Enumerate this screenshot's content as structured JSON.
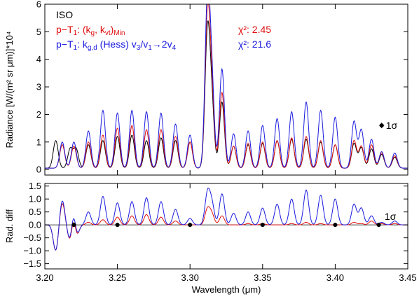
{
  "chart_data": [
    {
      "type": "line",
      "panel": "top",
      "ylabel": "Radiance [W/(m² sr μm)]*10⁴",
      "xlabel": "",
      "xlim": [
        3.2,
        3.45
      ],
      "ylim": [
        -0.2,
        6.0
      ],
      "yticks": [
        "0",
        "1",
        "2",
        "3",
        "4",
        "5",
        "6"
      ],
      "grid": false,
      "legend_position": "top-left",
      "sigma_label": "1σ",
      "sigma_point": {
        "x": 3.432,
        "y": 1.6,
        "err": 0.1
      },
      "colors": {
        "ISO": "#000000",
        "MinModel": "#e01010",
        "HessModel": "#1a1ae0"
      },
      "legend": [
        {
          "series": "ISO",
          "parts": [
            {
              "text": "ISO"
            }
          ]
        },
        {
          "series": "MinModel",
          "parts": [
            {
              "text": "p−T"
            },
            {
              "text": "1",
              "sub": true
            },
            {
              "text": ": (k"
            },
            {
              "text": "g",
              "sub": true
            },
            {
              "text": ", k"
            },
            {
              "text": "vt",
              "sub": true
            },
            {
              "text": ")"
            },
            {
              "text": "Min",
              "sub": true
            }
          ]
        },
        {
          "series": "HessModel",
          "parts": [
            {
              "text": "p−T"
            },
            {
              "text": "1",
              "sub": true
            },
            {
              "text": ": k"
            },
            {
              "text": "g,d",
              "sub": true
            },
            {
              "text": " (Hess) v"
            },
            {
              "text": "3",
              "sub": true
            },
            {
              "text": "/v"
            },
            {
              "text": "1",
              "sub": true
            },
            {
              "text": "→2v"
            },
            {
              "text": "4",
              "sub": true
            }
          ]
        }
      ],
      "chi2": [
        {
          "series": "MinModel",
          "label": "χ²: 2.45"
        },
        {
          "series": "HessModel",
          "label": "χ²: 21.6"
        }
      ],
      "series": [
        {
          "name": "ISO",
          "baseline": 0.05,
          "peaks": [
            [
              3.2075,
              1.0
            ],
            [
              3.2175,
              0.7
            ],
            [
              3.2215,
              0.7
            ],
            [
              3.23,
              0.85
            ],
            [
              3.24,
              1.0
            ],
            [
              3.25,
              1.15
            ],
            [
              3.26,
              1.2
            ],
            [
              3.27,
              1.0
            ],
            [
              3.28,
              1.1
            ],
            [
              3.29,
              1.0
            ],
            [
              3.3,
              0.95
            ],
            [
              3.312,
              4.8
            ],
            [
              3.315,
              2.2
            ],
            [
              3.322,
              2.4
            ],
            [
              3.33,
              0.8
            ],
            [
              3.34,
              0.85
            ],
            [
              3.35,
              0.9
            ],
            [
              3.36,
              1.0
            ],
            [
              3.37,
              1.05
            ],
            [
              3.38,
              1.05
            ],
            [
              3.39,
              0.95
            ],
            [
              3.4,
              0.85
            ],
            [
              3.413,
              0.9
            ],
            [
              3.418,
              0.75
            ],
            [
              3.425,
              0.7
            ],
            [
              3.432,
              0.5
            ],
            [
              3.441,
              0.4
            ]
          ]
        },
        {
          "name": "MinModel",
          "baseline": 0.05,
          "peaks": [
            [
              3.212,
              0.85
            ],
            [
              3.22,
              0.8
            ],
            [
              3.23,
              0.95
            ],
            [
              3.24,
              1.2
            ],
            [
              3.25,
              1.45
            ],
            [
              3.26,
              1.55
            ],
            [
              3.27,
              1.4
            ],
            [
              3.28,
              1.4
            ],
            [
              3.29,
              1.15
            ],
            [
              3.3,
              0.95
            ],
            [
              3.312,
              5.4
            ],
            [
              3.315,
              2.6
            ],
            [
              3.322,
              2.75
            ],
            [
              3.33,
              0.8
            ],
            [
              3.34,
              0.9
            ],
            [
              3.35,
              0.95
            ],
            [
              3.36,
              1.0
            ],
            [
              3.37,
              1.1
            ],
            [
              3.38,
              1.15
            ],
            [
              3.39,
              1.0
            ],
            [
              3.4,
              0.85
            ],
            [
              3.413,
              1.0
            ],
            [
              3.418,
              0.8
            ],
            [
              3.425,
              0.85
            ],
            [
              3.432,
              0.55
            ],
            [
              3.441,
              0.45
            ]
          ]
        },
        {
          "name": "HessModel",
          "baseline": 0.05,
          "peaks": [
            [
              3.212,
              0.95
            ],
            [
              3.22,
              0.95
            ],
            [
              3.23,
              1.35
            ],
            [
              3.24,
              2.1
            ],
            [
              3.25,
              2.0
            ],
            [
              3.26,
              2.1
            ],
            [
              3.27,
              2.05
            ],
            [
              3.28,
              2.0
            ],
            [
              3.29,
              1.6
            ],
            [
              3.3,
              1.2
            ],
            [
              3.312,
              6.0
            ],
            [
              3.315,
              3.0
            ],
            [
              3.322,
              3.6
            ],
            [
              3.33,
              1.25
            ],
            [
              3.34,
              1.35
            ],
            [
              3.35,
              1.55
            ],
            [
              3.36,
              1.8
            ],
            [
              3.37,
              2.05
            ],
            [
              3.38,
              2.4
            ],
            [
              3.39,
              2.1
            ],
            [
              3.4,
              1.85
            ],
            [
              3.413,
              1.7
            ],
            [
              3.418,
              1.4
            ],
            [
              3.425,
              1.05
            ],
            [
              3.432,
              0.6
            ],
            [
              3.441,
              0.55
            ]
          ]
        }
      ]
    },
    {
      "type": "line",
      "panel": "bottom",
      "ylabel": "Rad. diff",
      "xlabel": "Wavelength (μm)",
      "xlim": [
        3.2,
        3.45
      ],
      "ylim": [
        -1.7,
        1.6
      ],
      "yticks": [
        "−1.5",
        "−1.0",
        "−0.5",
        "0.0",
        "0.5",
        "1.0",
        "1.5"
      ],
      "xticks": [
        "3.20",
        "3.25",
        "3.30",
        "3.35",
        "3.40",
        "3.45"
      ],
      "grid": false,
      "zero_line": true,
      "sigma_label": "1σ",
      "sigma_points": [
        {
          "x": 3.22,
          "y": 0.0,
          "err": 0.08
        },
        {
          "x": 3.25,
          "y": 0.0,
          "err": 0.08
        },
        {
          "x": 3.3,
          "y": 0.0,
          "err": 0.08
        },
        {
          "x": 3.35,
          "y": 0.0,
          "err": 0.08
        },
        {
          "x": 3.4,
          "y": 0.0,
          "err": 0.08
        },
        {
          "x": 3.43,
          "y": 0.0,
          "err": 0.08
        }
      ]
    }
  ]
}
